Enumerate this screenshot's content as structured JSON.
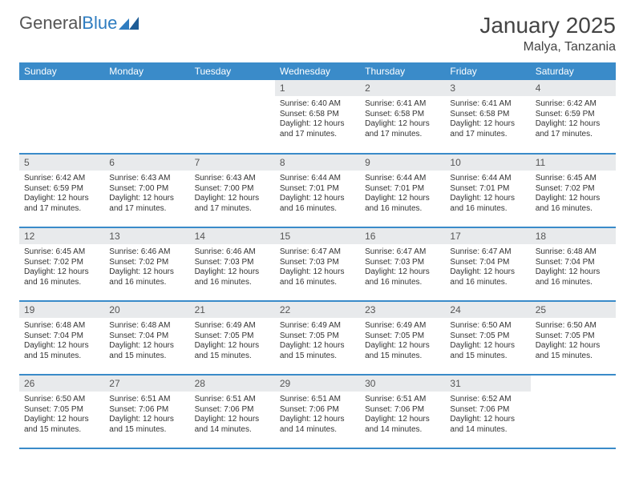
{
  "logo": {
    "gray": "General",
    "blue": "Blue"
  },
  "title": "January 2025",
  "location": "Malya, Tanzania",
  "colors": {
    "header_bg": "#3a8bc9",
    "header_text": "#ffffff",
    "daynum_bg": "#e8eaec",
    "border": "#3a8bc9",
    "logo_blue": "#2e7cc0"
  },
  "weekdays": [
    "Sunday",
    "Monday",
    "Tuesday",
    "Wednesday",
    "Thursday",
    "Friday",
    "Saturday"
  ],
  "weeks": [
    [
      null,
      null,
      null,
      {
        "n": "1",
        "sr": "6:40 AM",
        "ss": "6:58 PM",
        "dl": "12 hours and 17 minutes."
      },
      {
        "n": "2",
        "sr": "6:41 AM",
        "ss": "6:58 PM",
        "dl": "12 hours and 17 minutes."
      },
      {
        "n": "3",
        "sr": "6:41 AM",
        "ss": "6:58 PM",
        "dl": "12 hours and 17 minutes."
      },
      {
        "n": "4",
        "sr": "6:42 AM",
        "ss": "6:59 PM",
        "dl": "12 hours and 17 minutes."
      }
    ],
    [
      {
        "n": "5",
        "sr": "6:42 AM",
        "ss": "6:59 PM",
        "dl": "12 hours and 17 minutes."
      },
      {
        "n": "6",
        "sr": "6:43 AM",
        "ss": "7:00 PM",
        "dl": "12 hours and 17 minutes."
      },
      {
        "n": "7",
        "sr": "6:43 AM",
        "ss": "7:00 PM",
        "dl": "12 hours and 17 minutes."
      },
      {
        "n": "8",
        "sr": "6:44 AM",
        "ss": "7:01 PM",
        "dl": "12 hours and 16 minutes."
      },
      {
        "n": "9",
        "sr": "6:44 AM",
        "ss": "7:01 PM",
        "dl": "12 hours and 16 minutes."
      },
      {
        "n": "10",
        "sr": "6:44 AM",
        "ss": "7:01 PM",
        "dl": "12 hours and 16 minutes."
      },
      {
        "n": "11",
        "sr": "6:45 AM",
        "ss": "7:02 PM",
        "dl": "12 hours and 16 minutes."
      }
    ],
    [
      {
        "n": "12",
        "sr": "6:45 AM",
        "ss": "7:02 PM",
        "dl": "12 hours and 16 minutes."
      },
      {
        "n": "13",
        "sr": "6:46 AM",
        "ss": "7:02 PM",
        "dl": "12 hours and 16 minutes."
      },
      {
        "n": "14",
        "sr": "6:46 AM",
        "ss": "7:03 PM",
        "dl": "12 hours and 16 minutes."
      },
      {
        "n": "15",
        "sr": "6:47 AM",
        "ss": "7:03 PM",
        "dl": "12 hours and 16 minutes."
      },
      {
        "n": "16",
        "sr": "6:47 AM",
        "ss": "7:03 PM",
        "dl": "12 hours and 16 minutes."
      },
      {
        "n": "17",
        "sr": "6:47 AM",
        "ss": "7:04 PM",
        "dl": "12 hours and 16 minutes."
      },
      {
        "n": "18",
        "sr": "6:48 AM",
        "ss": "7:04 PM",
        "dl": "12 hours and 16 minutes."
      }
    ],
    [
      {
        "n": "19",
        "sr": "6:48 AM",
        "ss": "7:04 PM",
        "dl": "12 hours and 15 minutes."
      },
      {
        "n": "20",
        "sr": "6:48 AM",
        "ss": "7:04 PM",
        "dl": "12 hours and 15 minutes."
      },
      {
        "n": "21",
        "sr": "6:49 AM",
        "ss": "7:05 PM",
        "dl": "12 hours and 15 minutes."
      },
      {
        "n": "22",
        "sr": "6:49 AM",
        "ss": "7:05 PM",
        "dl": "12 hours and 15 minutes."
      },
      {
        "n": "23",
        "sr": "6:49 AM",
        "ss": "7:05 PM",
        "dl": "12 hours and 15 minutes."
      },
      {
        "n": "24",
        "sr": "6:50 AM",
        "ss": "7:05 PM",
        "dl": "12 hours and 15 minutes."
      },
      {
        "n": "25",
        "sr": "6:50 AM",
        "ss": "7:05 PM",
        "dl": "12 hours and 15 minutes."
      }
    ],
    [
      {
        "n": "26",
        "sr": "6:50 AM",
        "ss": "7:05 PM",
        "dl": "12 hours and 15 minutes."
      },
      {
        "n": "27",
        "sr": "6:51 AM",
        "ss": "7:06 PM",
        "dl": "12 hours and 15 minutes."
      },
      {
        "n": "28",
        "sr": "6:51 AM",
        "ss": "7:06 PM",
        "dl": "12 hours and 14 minutes."
      },
      {
        "n": "29",
        "sr": "6:51 AM",
        "ss": "7:06 PM",
        "dl": "12 hours and 14 minutes."
      },
      {
        "n": "30",
        "sr": "6:51 AM",
        "ss": "7:06 PM",
        "dl": "12 hours and 14 minutes."
      },
      {
        "n": "31",
        "sr": "6:52 AM",
        "ss": "7:06 PM",
        "dl": "12 hours and 14 minutes."
      },
      null
    ]
  ],
  "labels": {
    "sunrise": "Sunrise:",
    "sunset": "Sunset:",
    "daylight": "Daylight:"
  }
}
